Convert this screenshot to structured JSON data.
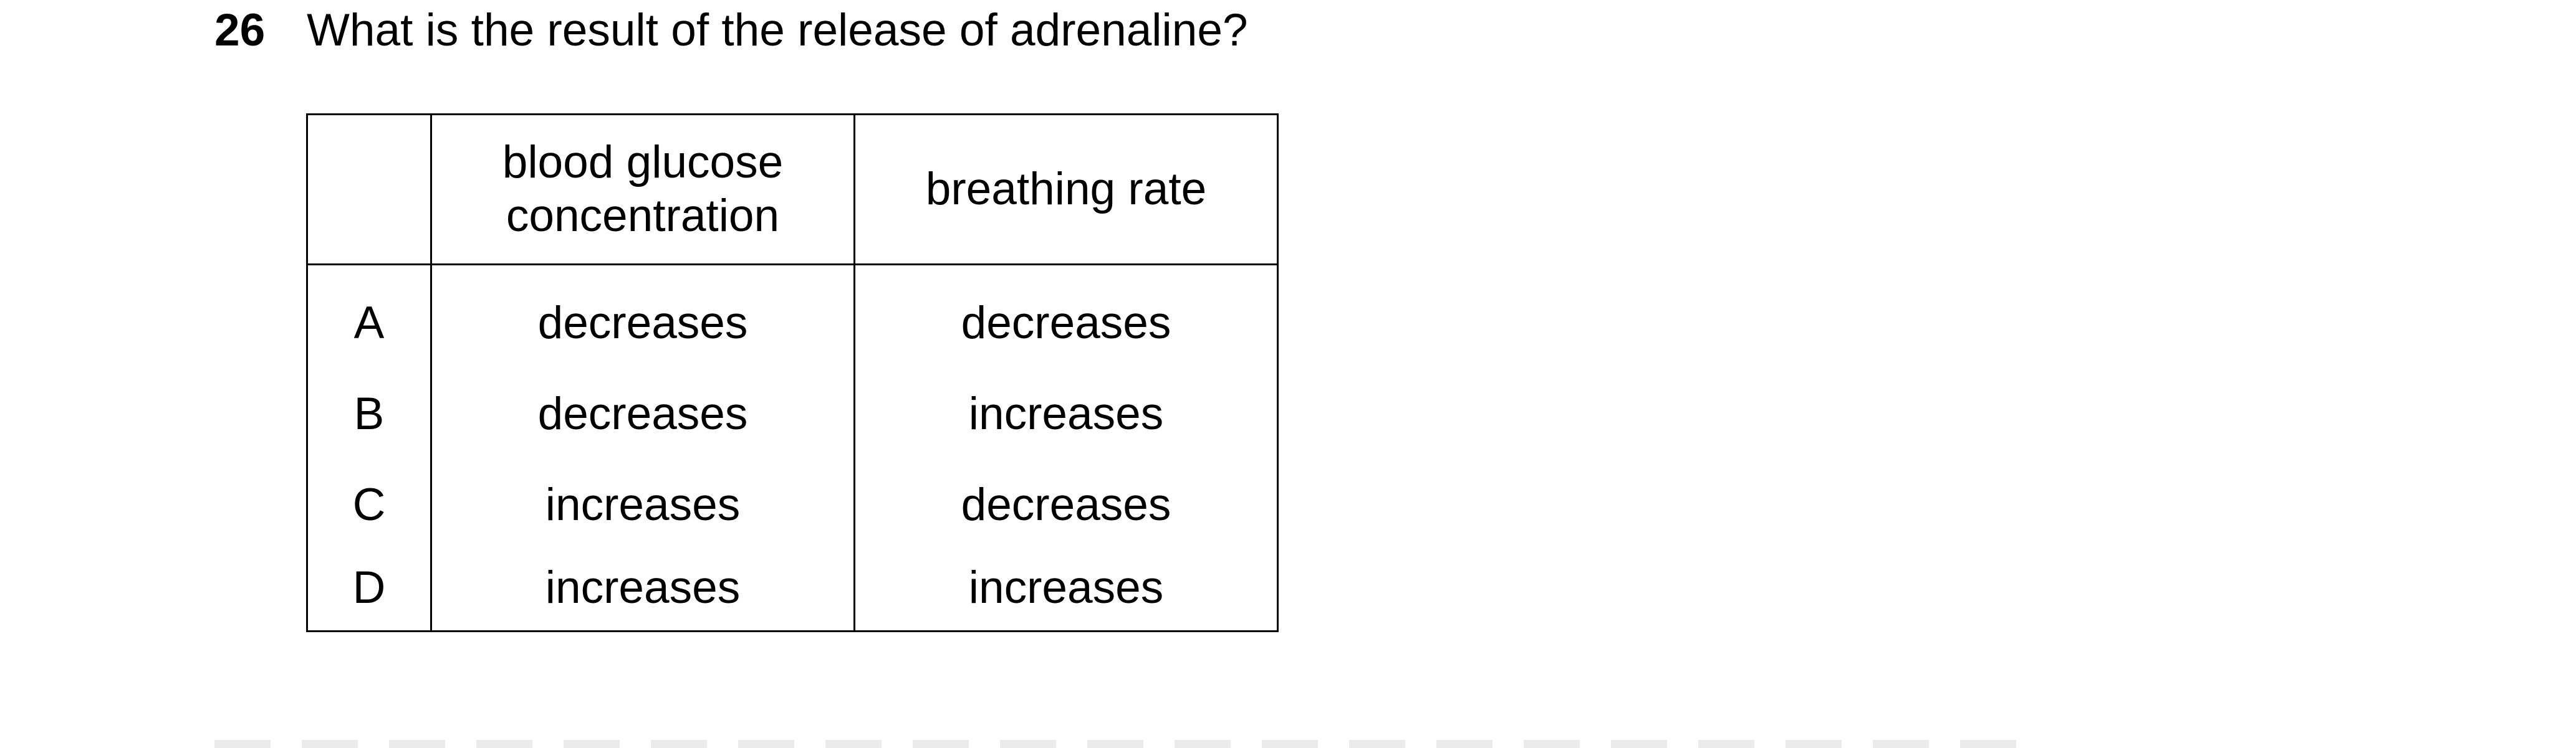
{
  "question": {
    "number": "26",
    "text": "What is the result of the release of adrenaline?"
  },
  "table": {
    "headers": [
      "",
      "blood glucose concentration",
      "breathing rate"
    ],
    "rows": [
      {
        "letter": "A",
        "glucose": "decreases",
        "breathing": "decreases"
      },
      {
        "letter": "B",
        "glucose": "decreases",
        "breathing": "increases"
      },
      {
        "letter": "C",
        "glucose": "increases",
        "breathing": "decreases"
      },
      {
        "letter": "D",
        "glucose": "increases",
        "breathing": "increases"
      }
    ]
  }
}
